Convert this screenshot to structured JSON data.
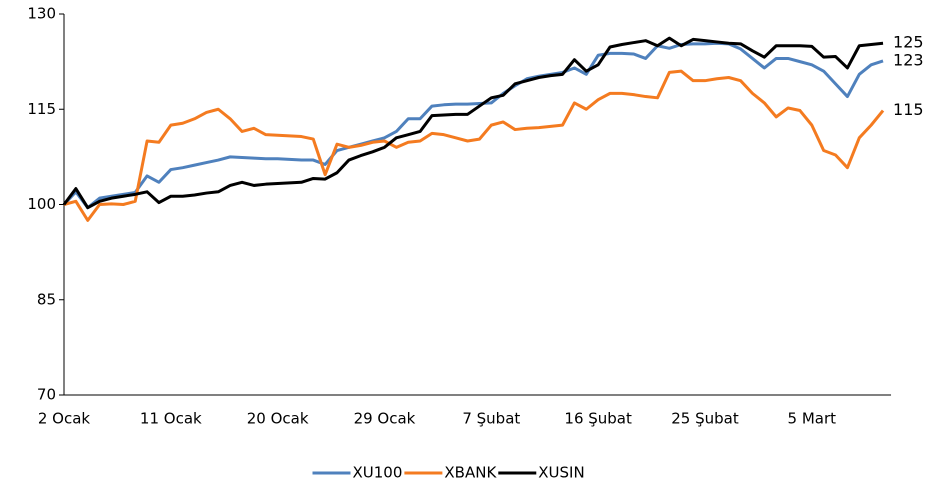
{
  "chart_data": {
    "type": "line",
    "categories": [
      "2 Ocak",
      null,
      null,
      null,
      null,
      null,
      null,
      null,
      null,
      "11 Ocak",
      null,
      null,
      null,
      null,
      null,
      null,
      null,
      null,
      "20 Ocak",
      null,
      null,
      null,
      null,
      null,
      null,
      null,
      null,
      "29 Ocak",
      null,
      null,
      null,
      null,
      null,
      null,
      null,
      null,
      "7 Şubat",
      null,
      null,
      null,
      null,
      null,
      null,
      null,
      null,
      "16 Şubat",
      null,
      null,
      null,
      null,
      null,
      null,
      null,
      null,
      "25 Şubat",
      null,
      null,
      null,
      null,
      null,
      null,
      null,
      null,
      "5 Mart",
      null,
      null,
      null,
      null,
      null,
      null
    ],
    "ylim": [
      70,
      130
    ],
    "yticks": [
      70,
      85,
      100,
      115,
      130
    ],
    "legend": "bottom",
    "series": [
      {
        "name": "XU100",
        "color": "#4f81bd",
        "values": [
          100,
          102,
          99.5,
          101,
          101.3,
          101.6,
          101.9,
          104.5,
          103.5,
          105.5,
          105.8,
          106.2,
          106.6,
          107,
          107.5,
          107.4,
          107.3,
          107.2,
          107.2,
          107.1,
          107,
          107,
          106.3,
          108.5,
          109,
          109.5,
          110,
          110.5,
          111.5,
          113.5,
          113.5,
          115.5,
          115.7,
          115.8,
          115.8,
          115.9,
          116,
          117.5,
          118.7,
          119.8,
          120.2,
          120.5,
          120.8,
          121.5,
          120.5,
          123.5,
          123.8,
          123.8,
          123.7,
          123,
          125,
          124.6,
          125.2,
          125.3,
          125.3,
          125.4,
          125.3,
          124.5,
          123,
          121.5,
          123,
          123,
          122.5,
          122,
          121,
          119,
          117,
          120.5,
          122,
          122.6
        ],
        "value_labels": [
          null,
          null,
          null,
          null,
          null,
          null,
          null,
          null,
          null,
          null,
          null,
          null,
          null,
          null,
          null,
          null,
          null,
          null,
          null,
          null,
          null,
          null,
          null,
          null,
          null,
          null,
          null,
          null,
          null,
          null,
          null,
          null,
          null,
          null,
          null,
          null,
          null,
          null,
          null,
          null,
          null,
          null,
          null,
          null,
          null,
          null,
          null,
          null,
          null,
          null,
          null,
          null,
          null,
          null,
          null,
          null,
          null,
          null,
          null,
          null,
          null,
          null,
          null,
          null,
          null,
          null,
          null,
          null,
          null,
          "123"
        ]
      },
      {
        "name": "XBANK",
        "color": "#f47b20",
        "values": [
          100,
          100.5,
          97.5,
          100,
          100.1,
          100,
          100.5,
          110,
          109.8,
          112.5,
          112.8,
          113.5,
          114.5,
          115,
          113.5,
          111.5,
          112,
          111,
          110.9,
          110.8,
          110.7,
          110.3,
          104.7,
          109.5,
          109,
          109.3,
          109.8,
          110,
          109,
          109.8,
          110,
          111.2,
          111,
          110.5,
          110,
          110.3,
          112.5,
          113,
          111.8,
          112,
          112.1,
          112.3,
          112.5,
          116,
          115,
          116.5,
          117.5,
          117.5,
          117.3,
          117,
          116.8,
          120.8,
          121,
          119.5,
          119.5,
          119.8,
          120,
          119.5,
          117.5,
          116,
          113.8,
          115.2,
          114.8,
          112.5,
          108.5,
          107.8,
          105.8,
          110.5,
          112.5,
          114.8
        ],
        "value_labels": [
          null,
          null,
          null,
          null,
          null,
          null,
          null,
          null,
          null,
          null,
          null,
          null,
          null,
          null,
          null,
          null,
          null,
          null,
          null,
          null,
          null,
          null,
          null,
          null,
          null,
          null,
          null,
          null,
          null,
          null,
          null,
          null,
          null,
          null,
          null,
          null,
          null,
          null,
          null,
          null,
          null,
          null,
          null,
          null,
          null,
          null,
          null,
          null,
          null,
          null,
          null,
          null,
          null,
          null,
          null,
          null,
          null,
          null,
          null,
          null,
          null,
          null,
          null,
          null,
          null,
          null,
          null,
          null,
          null,
          "115"
        ]
      },
      {
        "name": "XUSIN",
        "color": "#000000",
        "values": [
          100,
          102.5,
          99.5,
          100.5,
          101,
          101.3,
          101.6,
          102,
          100.3,
          101.3,
          101.3,
          101.5,
          101.8,
          102,
          103,
          103.5,
          103,
          103.2,
          103.3,
          103.4,
          103.5,
          104.1,
          104,
          105,
          107,
          107.7,
          108.3,
          109,
          110.5,
          111,
          111.5,
          114,
          114.1,
          114.2,
          114.2,
          115.5,
          116.8,
          117.2,
          119,
          119.5,
          120,
          120.3,
          120.5,
          122.8,
          121,
          122,
          124.8,
          125.2,
          125.5,
          125.8,
          125,
          126.2,
          125,
          126,
          125.8,
          125.6,
          125.4,
          125.3,
          124.2,
          123.2,
          125,
          125,
          125,
          124.9,
          123.2,
          123.3,
          121.5,
          125,
          125.2,
          125.4
        ],
        "value_labels": [
          null,
          null,
          null,
          null,
          null,
          null,
          null,
          null,
          null,
          null,
          null,
          null,
          null,
          null,
          null,
          null,
          null,
          null,
          null,
          null,
          null,
          null,
          null,
          null,
          null,
          null,
          null,
          null,
          null,
          null,
          null,
          null,
          null,
          null,
          null,
          null,
          null,
          null,
          null,
          null,
          null,
          null,
          null,
          null,
          null,
          null,
          null,
          null,
          null,
          null,
          null,
          null,
          null,
          null,
          null,
          null,
          null,
          null,
          null,
          null,
          null,
          null,
          null,
          null,
          null,
          null,
          null,
          null,
          null,
          "125"
        ]
      }
    ]
  }
}
